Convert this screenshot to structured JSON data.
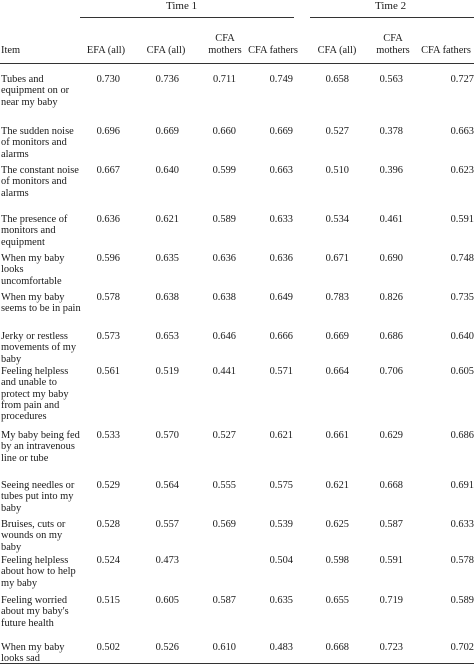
{
  "table": {
    "groups": [
      {
        "label": "Time 1"
      },
      {
        "label": "Time 2"
      }
    ],
    "columns": [
      "Item",
      "EFA (all)",
      "CFA (all)",
      "CFA\nmothers",
      "CFA fathers",
      "CFA (all)",
      "CFA\nmothers",
      "CFA fathers"
    ],
    "rows": [
      {
        "item": "Tubes and equipment on or near my baby",
        "values": [
          "0.730",
          "0.736",
          "0.711",
          "0.749",
          "0.658",
          "0.563",
          "0.727"
        ]
      },
      {
        "item": "The sudden noise of monitors and alarms",
        "values": [
          "0.696",
          "0.669",
          "0.660",
          "0.669",
          "0.527",
          "0.378",
          "0.663"
        ]
      },
      {
        "item": "The constant noise of monitors and alarms",
        "values": [
          "0.667",
          "0.640",
          "0.599",
          "0.663",
          "0.510",
          "0.396",
          "0.623"
        ]
      },
      {
        "item": "The presence of monitors and equipment",
        "values": [
          "0.636",
          "0.621",
          "0.589",
          "0.633",
          "0.534",
          "0.461",
          "0.591"
        ]
      },
      {
        "item": "When my baby looks uncomfortable",
        "values": [
          "0.596",
          "0.635",
          "0.636",
          "0.636",
          "0.671",
          "0.690",
          "0.748"
        ]
      },
      {
        "item": "When my baby seems to be in pain",
        "values": [
          "0.578",
          "0.638",
          "0.638",
          "0.649",
          "0.783",
          "0.826",
          "0.735"
        ]
      },
      {
        "item": "Jerky or restless movements of my baby",
        "values": [
          "0.573",
          "0.653",
          "0.646",
          "0.666",
          "0.669",
          "0.686",
          "0.640"
        ]
      },
      {
        "item": "Feeling helpless and unable to protect my baby from pain and procedures",
        "values": [
          "0.561",
          "0.519",
          "0.441",
          "0.571",
          "0.664",
          "0.706",
          "0.605"
        ]
      },
      {
        "item": "My baby being fed by an intravenous line or tube",
        "values": [
          "0.533",
          "0.570",
          "0.527",
          "0.621",
          "0.661",
          "0.629",
          "0.686"
        ]
      },
      {
        "item": "Seeing needles or tubes put into my baby",
        "values": [
          "0.529",
          "0.564",
          "0.555",
          "0.575",
          "0.621",
          "0.668",
          "0.691"
        ]
      },
      {
        "item": "Bruises, cuts or wounds on my baby",
        "values": [
          "0.528",
          "0.557",
          "0.569",
          "0.539",
          "0.625",
          "0.587",
          "0.633"
        ]
      },
      {
        "item": "Feeling helpless about how to help my baby",
        "values": [
          "0.524",
          "0.473",
          "",
          "0.504",
          "0.598",
          "0.591",
          "0.578"
        ]
      },
      {
        "item": "Feeling worried about my baby's future health",
        "values": [
          "0.515",
          "0.605",
          "0.587",
          "0.635",
          "0.655",
          "0.719",
          "0.589"
        ]
      },
      {
        "item": "When my baby looks sad",
        "values": [
          "0.502",
          "0.526",
          "0.610",
          "0.483",
          "0.668",
          "0.723",
          "0.702"
        ]
      }
    ]
  }
}
